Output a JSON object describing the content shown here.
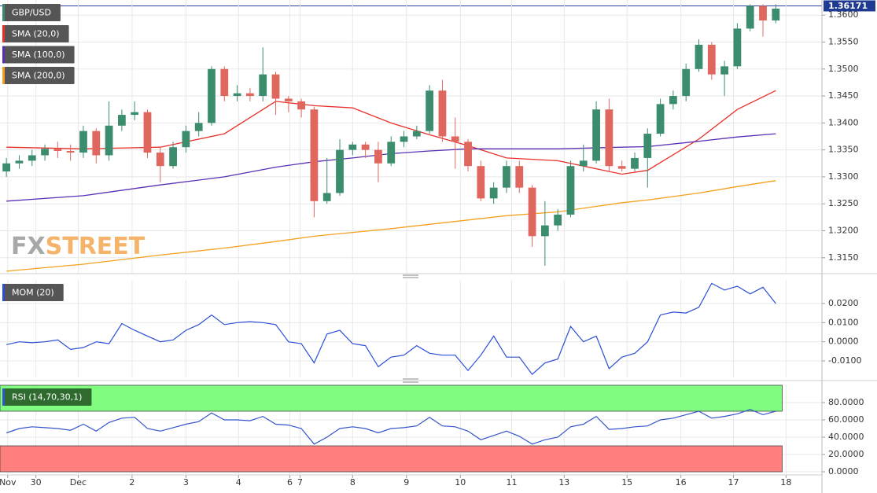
{
  "watermark": {
    "prefix": "FX",
    "suffix": "STREET"
  },
  "chart_data": [
    {
      "type": "candlestick",
      "title": "GBP/USD",
      "up_color": "#3b8d6d",
      "down_color": "#e0675d",
      "open": [
        1.331,
        1.3325,
        1.333,
        1.334,
        1.3352,
        1.3348,
        1.3345,
        1.3385,
        1.334,
        1.3395,
        1.3415,
        1.342,
        1.3345,
        1.332,
        1.3355,
        1.3385,
        1.34,
        1.35,
        1.345,
        1.3455,
        1.345,
        1.349,
        1.3445,
        1.344,
        1.3425,
        1.3255,
        1.327,
        1.335,
        1.336,
        1.335,
        1.3325,
        1.3365,
        1.3375,
        1.3385,
        1.346,
        1.3375,
        1.3365,
        1.332,
        1.326,
        1.328,
        1.332,
        1.328,
        1.319,
        1.321,
        1.323,
        1.332,
        1.333,
        1.3425,
        1.332,
        1.3315,
        1.3335,
        1.338,
        1.3435,
        1.345,
        1.35,
        1.3545,
        1.349,
        1.3505,
        1.3575,
        1.3617,
        1.359
      ],
      "high": [
        1.3335,
        1.334,
        1.335,
        1.336,
        1.3365,
        1.336,
        1.3395,
        1.339,
        1.344,
        1.3425,
        1.344,
        1.3425,
        1.3355,
        1.3365,
        1.3395,
        1.342,
        1.3505,
        1.3505,
        1.347,
        1.3465,
        1.354,
        1.3495,
        1.345,
        1.3445,
        1.343,
        1.3335,
        1.337,
        1.3365,
        1.3365,
        1.3365,
        1.3375,
        1.3385,
        1.3395,
        1.347,
        1.348,
        1.341,
        1.337,
        1.333,
        1.329,
        1.333,
        1.333,
        1.3285,
        1.3255,
        1.324,
        1.333,
        1.336,
        1.344,
        1.3445,
        1.333,
        1.3345,
        1.339,
        1.3445,
        1.346,
        1.351,
        1.3555,
        1.355,
        1.3515,
        1.3585,
        1.362,
        1.362,
        1.362
      ],
      "low": [
        1.33,
        1.3315,
        1.332,
        1.333,
        1.3335,
        1.333,
        1.3335,
        1.3325,
        1.333,
        1.3385,
        1.3405,
        1.3335,
        1.329,
        1.3315,
        1.3345,
        1.3375,
        1.3395,
        1.344,
        1.344,
        1.344,
        1.344,
        1.3415,
        1.342,
        1.341,
        1.3225,
        1.325,
        1.3265,
        1.334,
        1.3335,
        1.329,
        1.332,
        1.3355,
        1.337,
        1.338,
        1.3365,
        1.3315,
        1.331,
        1.3255,
        1.325,
        1.327,
        1.327,
        1.317,
        1.3135,
        1.32,
        1.3225,
        1.331,
        1.3325,
        1.331,
        1.331,
        1.331,
        1.328,
        1.3375,
        1.3425,
        1.344,
        1.3495,
        1.348,
        1.345,
        1.35,
        1.357,
        1.356,
        1.3585
      ],
      "close": [
        1.3325,
        1.333,
        1.334,
        1.3352,
        1.3348,
        1.3345,
        1.3385,
        1.334,
        1.3395,
        1.3415,
        1.342,
        1.3345,
        1.332,
        1.3355,
        1.3385,
        1.34,
        1.35,
        1.345,
        1.3455,
        1.345,
        1.349,
        1.3445,
        1.344,
        1.3425,
        1.3255,
        1.327,
        1.335,
        1.336,
        1.335,
        1.3325,
        1.3365,
        1.3375,
        1.3385,
        1.346,
        1.3375,
        1.3365,
        1.332,
        1.326,
        1.328,
        1.332,
        1.328,
        1.319,
        1.321,
        1.323,
        1.332,
        1.333,
        1.3425,
        1.332,
        1.3315,
        1.3335,
        1.338,
        1.3435,
        1.345,
        1.35,
        1.3545,
        1.349,
        1.3505,
        1.3575,
        1.3617,
        1.359,
        1.3612
      ],
      "series": [
        {
          "name": "SMA (20,0)",
          "color": "#e8302a",
          "x": [
            0,
            6,
            12,
            17,
            21,
            24,
            27,
            30,
            33,
            36,
            39,
            43,
            48,
            50,
            54,
            57,
            60
          ],
          "values": [
            1.3355,
            1.3352,
            1.3355,
            1.338,
            1.344,
            1.3432,
            1.3428,
            1.34,
            1.3378,
            1.3358,
            1.3335,
            1.333,
            1.3305,
            1.3312,
            1.337,
            1.3425,
            1.346
          ]
        },
        {
          "name": "SMA (100,0)",
          "color": "#5a2fb5",
          "x": [
            0,
            6,
            12,
            17,
            21,
            24,
            27,
            30,
            33,
            36,
            39,
            43,
            48,
            50,
            54,
            57,
            60
          ],
          "values": [
            1.3255,
            1.3265,
            1.3285,
            1.33,
            1.3318,
            1.3328,
            1.3335,
            1.3343,
            1.3348,
            1.3352,
            1.3352,
            1.3352,
            1.3355,
            1.3356,
            1.3366,
            1.3374,
            1.338
          ]
        },
        {
          "name": "SMA (200,0)",
          "color": "#f5a01e",
          "x": [
            0,
            6,
            12,
            17,
            21,
            24,
            27,
            30,
            33,
            36,
            39,
            43,
            48,
            50,
            54,
            57,
            60
          ],
          "values": [
            1.3125,
            1.3138,
            1.3155,
            1.3168,
            1.318,
            1.319,
            1.3197,
            1.3204,
            1.3212,
            1.322,
            1.3228,
            1.3235,
            1.3252,
            1.3257,
            1.327,
            1.3282,
            1.3293
          ]
        }
      ],
      "last_price": 1.36171,
      "xlim": [
        -0.5,
        63.6
      ],
      "ylim": [
        1.3122,
        1.3628
      ],
      "yticks": [
        {
          "value": 1.315,
          "label": "1.3150"
        },
        {
          "value": 1.32,
          "label": "1.3200"
        },
        {
          "value": 1.325,
          "label": "1.3250"
        },
        {
          "value": 1.33,
          "label": "1.3300"
        },
        {
          "value": 1.335,
          "label": "1.3350"
        },
        {
          "value": 1.34,
          "label": "1.3400"
        },
        {
          "value": 1.345,
          "label": "1.3450"
        },
        {
          "value": 1.35,
          "label": "1.3500"
        },
        {
          "value": 1.355,
          "label": "1.3550"
        },
        {
          "value": 1.36,
          "label": "1.3600"
        }
      ],
      "grid": true
    },
    {
      "type": "line",
      "title": "MOM (20)",
      "color": "#2a4fd6",
      "values": [
        -0.0015,
        0.0,
        -0.0005,
        0.0,
        0.001,
        -0.004,
        -0.003,
        0.0,
        -0.001,
        0.0095,
        0.006,
        0.003,
        0.0,
        0.001,
        0.006,
        0.009,
        0.014,
        0.009,
        0.01,
        0.0105,
        0.01,
        0.009,
        0.0,
        -0.001,
        -0.011,
        0.004,
        0.006,
        -0.001,
        -0.002,
        -0.013,
        -0.008,
        -0.007,
        -0.002,
        -0.006,
        -0.007,
        -0.007,
        -0.015,
        -0.007,
        0.003,
        -0.008,
        -0.008,
        -0.017,
        -0.011,
        -0.009,
        0.008,
        0.0,
        0.003,
        -0.014,
        -0.008,
        -0.006,
        0.0,
        0.014,
        0.0155,
        0.015,
        0.018,
        0.0305,
        0.027,
        0.029,
        0.025,
        0.0285,
        0.02
      ],
      "xlim": [
        -0.5,
        63.6
      ],
      "ylim": [
        -0.0186,
        0.0323
      ],
      "yticks": [
        {
          "value": -0.01,
          "label": "-0.0100"
        },
        {
          "value": 0,
          "label": "0.0000"
        },
        {
          "value": 0.01,
          "label": "0.0100"
        },
        {
          "value": 0.02,
          "label": "0.0200"
        }
      ],
      "grid": true
    },
    {
      "type": "line",
      "title": "RSI (14,70,30,1)",
      "color": "#3355cc",
      "levels": [
        30,
        70
      ],
      "level_colors": [
        "#ff7f7f",
        "#80fc80"
      ],
      "values": [
        45,
        50,
        52,
        51,
        50,
        48,
        55,
        47,
        57,
        62,
        63,
        50,
        47,
        51,
        55,
        58,
        68,
        60,
        60,
        59,
        64,
        55,
        54,
        50,
        32,
        40,
        50,
        52,
        50,
        45,
        50,
        51,
        53,
        63,
        53,
        52,
        47,
        37,
        42,
        47,
        41,
        32,
        37,
        40,
        52,
        55,
        64,
        49,
        50,
        52,
        53,
        60,
        62,
        66,
        70,
        62,
        64,
        67,
        72,
        66,
        70
      ],
      "xlim": [
        -0.5,
        63.6
      ],
      "ylim": [
        -2.7,
        100.9
      ],
      "yticks": [
        {
          "value": 0,
          "label": "0.0000"
        },
        {
          "value": 20,
          "label": "20.0000"
        },
        {
          "value": 40,
          "label": "40.0000"
        },
        {
          "value": 60,
          "label": "60.0000"
        },
        {
          "value": 80,
          "label": "80.0000"
        }
      ],
      "xticks": [
        {
          "value": 0.1,
          "label": "Nov"
        },
        {
          "value": 2.3,
          "label": "30"
        },
        {
          "value": 5.6,
          "label": "Dec"
        },
        {
          "value": 9.8,
          "label": "2"
        },
        {
          "value": 14,
          "label": "3"
        },
        {
          "value": 18.1,
          "label": "4"
        },
        {
          "value": 22.1,
          "label": "6"
        },
        {
          "value": 22.9,
          "label": "7"
        },
        {
          "value": 27,
          "label": "8"
        },
        {
          "value": 31.2,
          "label": "9"
        },
        {
          "value": 35.4,
          "label": "10"
        },
        {
          "value": 39.4,
          "label": "11"
        },
        {
          "value": 43.5,
          "label": "13"
        },
        {
          "value": 48.4,
          "label": "15"
        },
        {
          "value": 52.6,
          "label": "16"
        },
        {
          "value": 56.7,
          "label": "17"
        },
        {
          "value": 60.8,
          "label": "18"
        }
      ],
      "grid": true
    }
  ]
}
